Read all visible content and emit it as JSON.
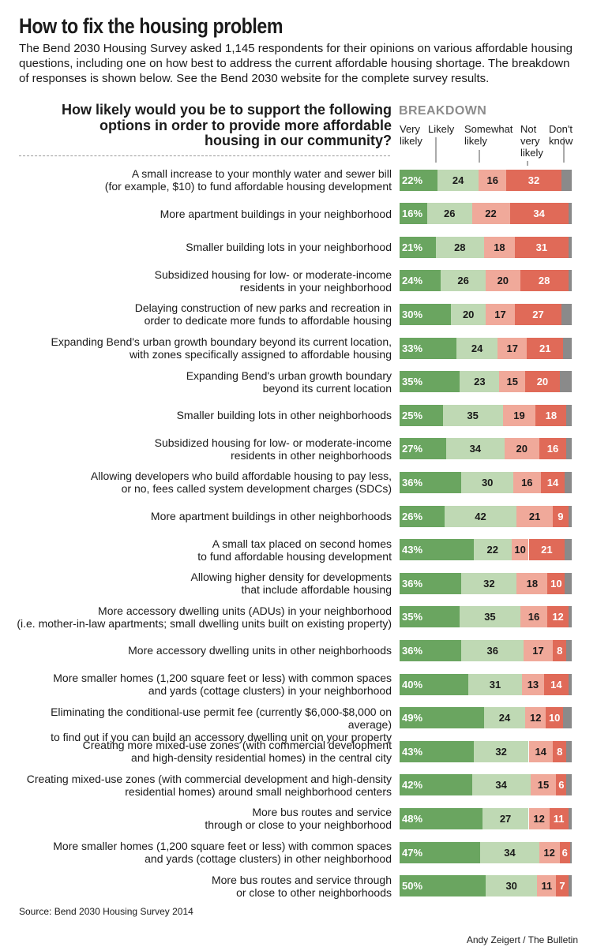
{
  "title": "How to fix the housing problem",
  "intro": "The Bend 2030 Housing Survey asked 1,145 respondents for their opinions on various affordable housing questions, including one on how best to address the current affordable housing shortage. The breakdown of responses is shown below. See the Bend 2030 website for the complete survey results.",
  "question": "How likely would you be to support the following options in order to provide more affordable housing in our community?",
  "breakdown_label": "BREAKDOWN",
  "legend": {
    "very_likely": "Very likely",
    "likely": "Likely",
    "somewhat_likely": "Somewhat likely",
    "not_very_likely": "Not very likely",
    "dont_know": "Don't know"
  },
  "colors": {
    "very_likely": "#6aa560",
    "likely": "#bfd9b4",
    "somewhat_likely": "#f0a99a",
    "not_very_likely": "#e06a58",
    "dont_know": "#8a8a8a"
  },
  "source": "Source: Bend 2030 Housing Survey 2014",
  "credit": "Andy Zeigert / The Bulletin",
  "chart_data": {
    "type": "bar",
    "stacked": true,
    "orientation": "horizontal",
    "unit": "%",
    "categories": [
      "A small increase to your monthly water and sewer bill (for example, $10) to fund affordable housing development",
      "More apartment buildings in your neighborhood",
      "Smaller building lots in your neighborhood",
      "Subsidized housing for low- or moderate-income residents in your neighborhood",
      "Delaying construction of new parks and recreation in order to dedicate more funds to affordable housing",
      "Expanding Bend's urban growth boundary beyond its current location, with zones specifically assigned to affordable housing",
      "Expanding Bend's urban growth boundary beyond its current location",
      "Smaller building lots in other neighborhoods",
      "Subsidized housing for low- or moderate-income residents in other neighborhoods",
      "Allowing developers who build affordable housing to pay less, or no, fees called system development charges (SDCs)",
      "More apartment buildings in other neighborhoods",
      "A small tax placed on second homes to fund affordable housing development",
      "Allowing higher density for developments that include affordable housing",
      "More accessory dwelling units (ADUs) in your neighborhood (i.e. mother-in-law apartments; small dwelling units built on existing property)",
      "More accessory dwelling units in other neighborhoods",
      "More smaller homes (1,200 square feet or less) with common spaces and yards (cottage clusters) in your neighborhood",
      "Eliminating the conditional-use permit fee (currently $6,000-$8,000 on average) to find out if you can build an accessory dwelling unit on your property",
      "Creating more mixed-use zones (with commercial development and high-density residential homes) in the central city",
      "Creating mixed-use zones (with commercial development and high-density residential homes) around small neighborhood centers",
      "More bus routes and service through or close to your neighborhood",
      "More smaller homes (1,200 square feet or less) with common spaces and yards (cottage clusters) in other neighborhood",
      "More bus routes and service through or close to other neighborhoods"
    ],
    "labels": [
      [
        "A small increase to your monthly water and sewer bill",
        "(for example, $10) to fund affordable housing development"
      ],
      [
        "More apartment buildings in your neighborhood"
      ],
      [
        "Smaller building lots in your neighborhood"
      ],
      [
        "Subsidized housing for low- or moderate-income",
        "residents in your neighborhood"
      ],
      [
        "Delaying construction of new parks and recreation in",
        "order to dedicate more funds to affordable housing"
      ],
      [
        "Expanding Bend's urban growth boundary beyond its current location,",
        "with zones specifically assigned to affordable housing"
      ],
      [
        "Expanding Bend's urban growth boundary",
        "beyond its current location"
      ],
      [
        "Smaller building lots in other neighborhoods"
      ],
      [
        "Subsidized housing for low- or moderate-income",
        "residents in other neighborhoods"
      ],
      [
        "Allowing developers who build affordable housing to pay less,",
        "or no, fees called system development charges (SDCs)"
      ],
      [
        "More apartment buildings in other neighborhoods"
      ],
      [
        "A small tax placed on second homes",
        "to fund affordable housing development"
      ],
      [
        "Allowing higher density for developments",
        "that include affordable housing"
      ],
      [
        "More accessory dwelling units (ADUs) in your neighborhood",
        "(i.e. mother-in-law apartments; small dwelling units built on existing property)"
      ],
      [
        "More accessory dwelling units in other neighborhoods"
      ],
      [
        "More smaller homes (1,200 square feet or less) with common spaces",
        "and yards (cottage clusters) in your neighborhood"
      ],
      [
        "Eliminating the conditional-use permit fee (currently $6,000-$8,000 on average)",
        "to find out if you can build an accessory dwelling unit on your property"
      ],
      [
        "Creating more mixed-use zones (with commercial development",
        "and high-density residential homes) in the central city"
      ],
      [
        "Creating mixed-use zones (with commercial development and high-density",
        "residential homes) around small neighborhood centers"
      ],
      [
        "More bus routes and service",
        "through or close to your neighborhood"
      ],
      [
        "More smaller homes (1,200 square feet or less) with common spaces",
        "and yards (cottage clusters) in other neighborhood"
      ],
      [
        "More bus routes and service through",
        "or close to other neighborhoods"
      ]
    ],
    "series": [
      {
        "name": "Very likely",
        "values": [
          22,
          16,
          21,
          24,
          30,
          33,
          35,
          25,
          27,
          36,
          26,
          43,
          36,
          35,
          36,
          40,
          49,
          43,
          42,
          48,
          47,
          50
        ]
      },
      {
        "name": "Likely",
        "values": [
          24,
          26,
          28,
          26,
          20,
          24,
          23,
          35,
          34,
          30,
          42,
          22,
          32,
          35,
          36,
          31,
          24,
          32,
          34,
          27,
          34,
          30
        ]
      },
      {
        "name": "Somewhat likely",
        "values": [
          16,
          22,
          18,
          20,
          17,
          17,
          15,
          19,
          20,
          16,
          21,
          10,
          18,
          16,
          17,
          13,
          12,
          14,
          15,
          12,
          12,
          11
        ]
      },
      {
        "name": "Not very likely",
        "values": [
          32,
          34,
          31,
          28,
          27,
          21,
          20,
          18,
          16,
          14,
          9,
          21,
          10,
          12,
          8,
          14,
          10,
          8,
          6,
          11,
          6,
          7
        ]
      },
      {
        "name": "Don't know",
        "values": [
          6,
          2,
          2,
          2,
          6,
          5,
          7,
          3,
          3,
          4,
          2,
          4,
          4,
          2,
          3,
          2,
          5,
          3,
          3,
          2,
          1,
          2
        ]
      }
    ],
    "value_label_suffix_first": "%",
    "xlim": [
      0,
      100
    ],
    "legend_position": "top"
  }
}
